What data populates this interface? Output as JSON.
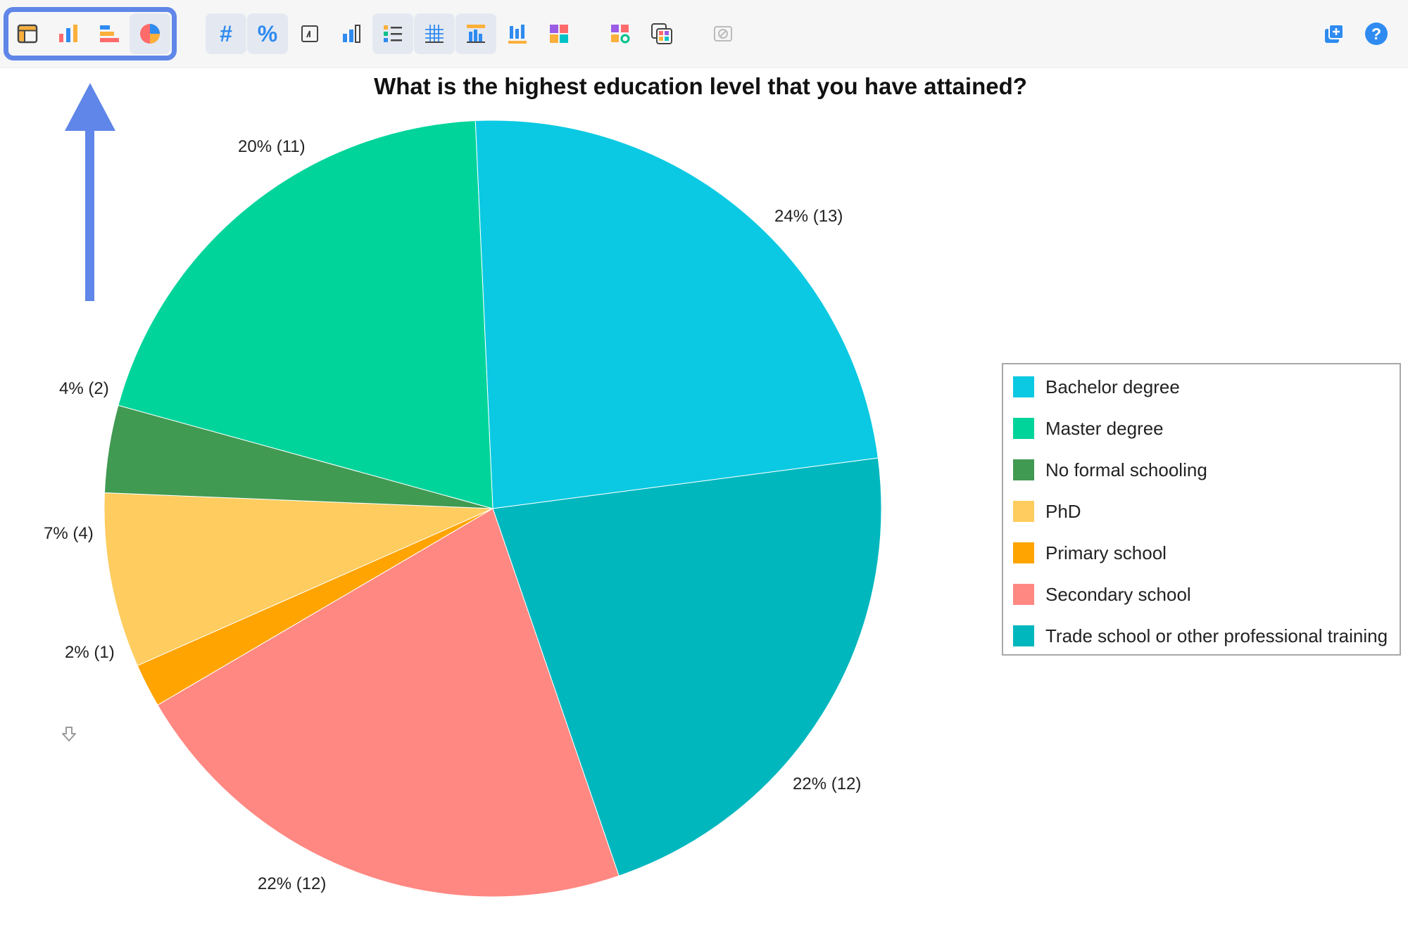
{
  "toolbar": {
    "chart_type_buttons": [
      {
        "name": "table-view-icon",
        "active": false
      },
      {
        "name": "column-chart-icon",
        "active": false
      },
      {
        "name": "bar-chart-icon",
        "active": false
      },
      {
        "name": "pie-chart-icon",
        "active": true
      }
    ],
    "format_buttons": [
      {
        "name": "count-button",
        "label": "#",
        "active": true
      },
      {
        "name": "percent-button",
        "label": "%",
        "active": true
      }
    ],
    "option_buttons": [
      {
        "name": "sort-icon",
        "active": false
      },
      {
        "name": "column-stats-icon",
        "active": false
      },
      {
        "name": "list-icon",
        "active": true
      },
      {
        "name": "grid-icon",
        "active": true
      },
      {
        "name": "highlight-chart-icon",
        "active": true
      },
      {
        "name": "column-values-icon",
        "active": false
      },
      {
        "name": "color-palette-icon",
        "active": false
      },
      {
        "name": "color-settings-icon",
        "active": false
      },
      {
        "name": "color-swatches-icon",
        "active": false
      },
      {
        "name": "disabled-option-icon",
        "active": false
      }
    ],
    "right_buttons": [
      {
        "name": "add-copy-icon"
      },
      {
        "name": "help-icon",
        "label": "?"
      }
    ]
  },
  "chart_data": {
    "type": "pie",
    "title": "What is the highest education level that you have attained?",
    "slices": [
      {
        "name": "Bachelor degree",
        "count": 13,
        "percent": 24,
        "label": "24% (13)",
        "color": "#0bc9e2"
      },
      {
        "name": "Trade school or other professional training",
        "count": 12,
        "percent": 22,
        "label": "22% (12)",
        "color": "#00b7be"
      },
      {
        "name": "Secondary school",
        "count": 12,
        "percent": 22,
        "label": "22% (12)",
        "color": "#ff8882"
      },
      {
        "name": "Primary school",
        "count": 1,
        "percent": 2,
        "label": "2% (1)",
        "color": "#ffa400"
      },
      {
        "name": "PhD",
        "count": 4,
        "percent": 7,
        "label": "7% (4)",
        "color": "#fecc5f"
      },
      {
        "name": "No formal schooling",
        "count": 2,
        "percent": 4,
        "label": "4% (2)",
        "color": "#419a52"
      },
      {
        "name": "Master degree",
        "count": 11,
        "percent": 20,
        "label": "20% (11)",
        "color": "#00d49a"
      }
    ],
    "legend_position": "right"
  },
  "legend": {
    "items": [
      {
        "label": "Bachelor degree",
        "color": "#0bc9e2"
      },
      {
        "label": "Master degree",
        "color": "#00d49a"
      },
      {
        "label": "No formal schooling",
        "color": "#419a52"
      },
      {
        "label": "PhD",
        "color": "#fecc5f"
      },
      {
        "label": "Primary school",
        "color": "#ffa400"
      },
      {
        "label": "Secondary school",
        "color": "#ff8882"
      },
      {
        "label": "Trade school or other professional training",
        "color": "#00b7be"
      }
    ]
  },
  "annotations": {
    "arrow_color": "#5f86e8",
    "arrow_direction": "up"
  },
  "download": {
    "icon": "download-icon"
  }
}
